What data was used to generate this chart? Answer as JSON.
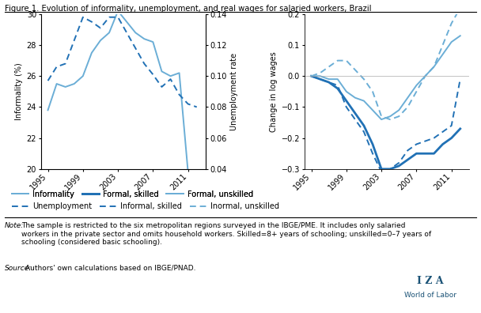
{
  "title": "Figure 1. Evolution of informality, unemployment, and real wages for salaried workers, Brazil",
  "left_panel": {
    "years": [
      1995,
      1996,
      1997,
      1998,
      1999,
      2000,
      2001,
      2002,
      2003,
      2004,
      2005,
      2006,
      2007,
      2008,
      2009,
      2010,
      2011,
      2012
    ],
    "informality": [
      23.8,
      25.5,
      25.3,
      25.5,
      26.0,
      27.5,
      28.3,
      28.8,
      30.2,
      29.5,
      28.8,
      28.4,
      28.2,
      26.3,
      26.0,
      26.2,
      19.8,
      19.8
    ],
    "unemployment": [
      0.097,
      0.106,
      0.108,
      0.123,
      0.138,
      0.135,
      0.131,
      0.138,
      0.138,
      0.128,
      0.118,
      0.108,
      0.101,
      0.093,
      0.098,
      0.088,
      0.082,
      0.08
    ],
    "ylim_left": [
      20,
      30
    ],
    "ylim_right": [
      0.04,
      0.14
    ],
    "yticks_left": [
      20,
      22,
      24,
      26,
      28,
      30
    ],
    "yticks_right": [
      0.04,
      0.06,
      0.08,
      0.1,
      0.12,
      0.14
    ],
    "ylabel_left": "Informality (%)",
    "ylabel_right": "Unemployment rate",
    "xticks": [
      1995,
      1999,
      2003,
      2007,
      2011
    ]
  },
  "right_panel": {
    "years": [
      1995,
      1996,
      1997,
      1998,
      1999,
      2000,
      2001,
      2002,
      2003,
      2004,
      2005,
      2006,
      2007,
      2008,
      2009,
      2010,
      2011,
      2012
    ],
    "formal_skilled": [
      0.0,
      -0.01,
      -0.02,
      -0.04,
      -0.08,
      -0.12,
      -0.16,
      -0.22,
      -0.3,
      -0.3,
      -0.29,
      -0.27,
      -0.25,
      -0.25,
      -0.25,
      -0.22,
      -0.2,
      -0.17
    ],
    "formal_unskilled": [
      0.0,
      0.0,
      -0.01,
      -0.01,
      -0.05,
      -0.07,
      -0.08,
      -0.11,
      -0.14,
      -0.13,
      -0.11,
      -0.07,
      -0.03,
      0.0,
      0.03,
      0.07,
      0.11,
      0.13
    ],
    "informal_skilled": [
      0.0,
      -0.01,
      -0.02,
      -0.03,
      -0.1,
      -0.14,
      -0.18,
      -0.25,
      -0.31,
      -0.3,
      -0.28,
      -0.24,
      -0.22,
      -0.21,
      -0.2,
      -0.18,
      -0.16,
      -0.01
    ],
    "informal_unskilled": [
      0.0,
      0.01,
      0.03,
      0.05,
      0.05,
      0.02,
      -0.01,
      -0.05,
      -0.13,
      -0.14,
      -0.13,
      -0.1,
      -0.05,
      0.0,
      0.03,
      0.1,
      0.17,
      0.22
    ],
    "ylim": [
      -0.3,
      0.2
    ],
    "yticks": [
      -0.3,
      -0.2,
      -0.1,
      0.0,
      0.1,
      0.2
    ],
    "ylabel": "Change in log wages",
    "xticks": [
      1995,
      1999,
      2003,
      2007,
      2011
    ]
  },
  "colors": {
    "light_blue": "#6baed6",
    "dark_blue": "#2171b5"
  },
  "note_italic": "Note:",
  "note_text": " The sample is restricted to the six metropolitan regions surveyed in the IBGE/PME. It includes only salaried workers in the private sector and omits household workers. Skilled=8+ years of schooling; unskilled=0–7 years of schooling (considered basic schooling).",
  "source_italic": "Source:",
  "source_text": " Authors' own calculations based on IBGE/PNAD.",
  "iza_line1": "I Z A",
  "iza_line2": "World of Labor"
}
